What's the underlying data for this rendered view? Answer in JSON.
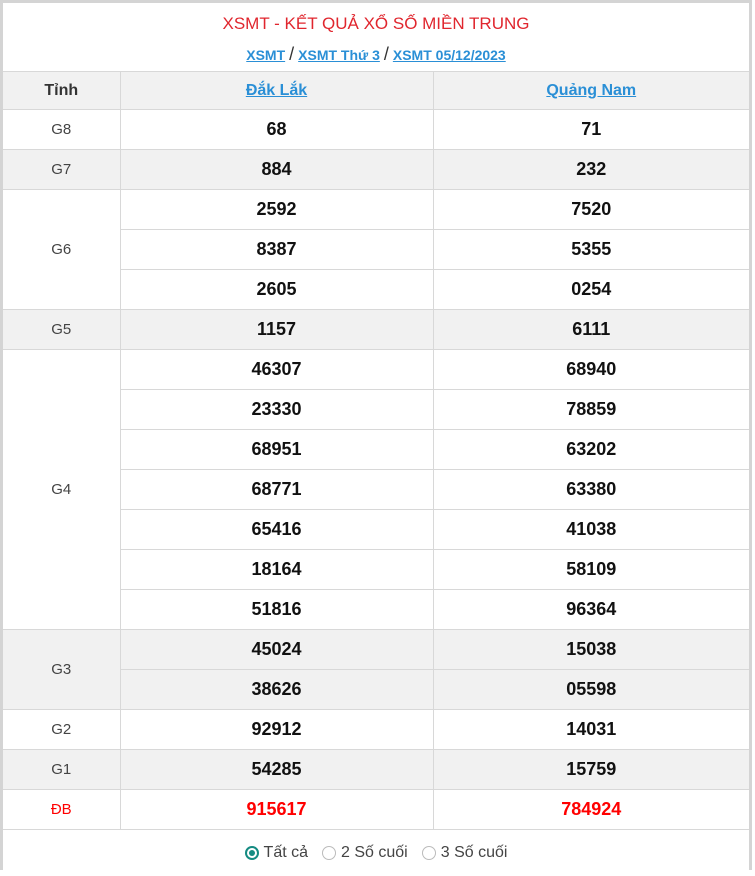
{
  "title": "XSMT - KẾT QUẢ XỔ SỐ MIỀN TRUNG",
  "breadcrumb": [
    "XSMT",
    "XSMT Thứ 3",
    "XSMT 05/12/2023"
  ],
  "breadcrumb_separator": "/",
  "header": {
    "label": "Tỉnh",
    "provinces": [
      "Đắk Lắk",
      "Quảng Nam"
    ]
  },
  "prizes": [
    {
      "name": "G8",
      "values": [
        [
          "68",
          "71"
        ]
      ]
    },
    {
      "name": "G7",
      "values": [
        [
          "884",
          "232"
        ]
      ]
    },
    {
      "name": "G6",
      "values": [
        [
          "2592",
          "7520"
        ],
        [
          "8387",
          "5355"
        ],
        [
          "2605",
          "0254"
        ]
      ]
    },
    {
      "name": "G5",
      "values": [
        [
          "1157",
          "6111"
        ]
      ]
    },
    {
      "name": "G4",
      "values": [
        [
          "46307",
          "68940"
        ],
        [
          "23330",
          "78859"
        ],
        [
          "68951",
          "63202"
        ],
        [
          "68771",
          "63380"
        ],
        [
          "65416",
          "41038"
        ],
        [
          "18164",
          "58109"
        ],
        [
          "51816",
          "96364"
        ]
      ]
    },
    {
      "name": "G3",
      "values": [
        [
          "45024",
          "15038"
        ],
        [
          "38626",
          "05598"
        ]
      ]
    },
    {
      "name": "G2",
      "values": [
        [
          "92912",
          "14031"
        ]
      ]
    },
    {
      "name": "G1",
      "values": [
        [
          "54285",
          "15759"
        ]
      ]
    },
    {
      "name": "ĐB",
      "values": [
        [
          "915617",
          "784924"
        ]
      ]
    }
  ],
  "filters": [
    {
      "label": "Tất cả",
      "selected": true
    },
    {
      "label": "2 Số cuối",
      "selected": false
    },
    {
      "label": "3 Số cuối",
      "selected": false
    }
  ],
  "colors": {
    "title": "#e0262e",
    "link": "#2a8fd6",
    "special": "#ff0000",
    "radio": "#158b82"
  }
}
